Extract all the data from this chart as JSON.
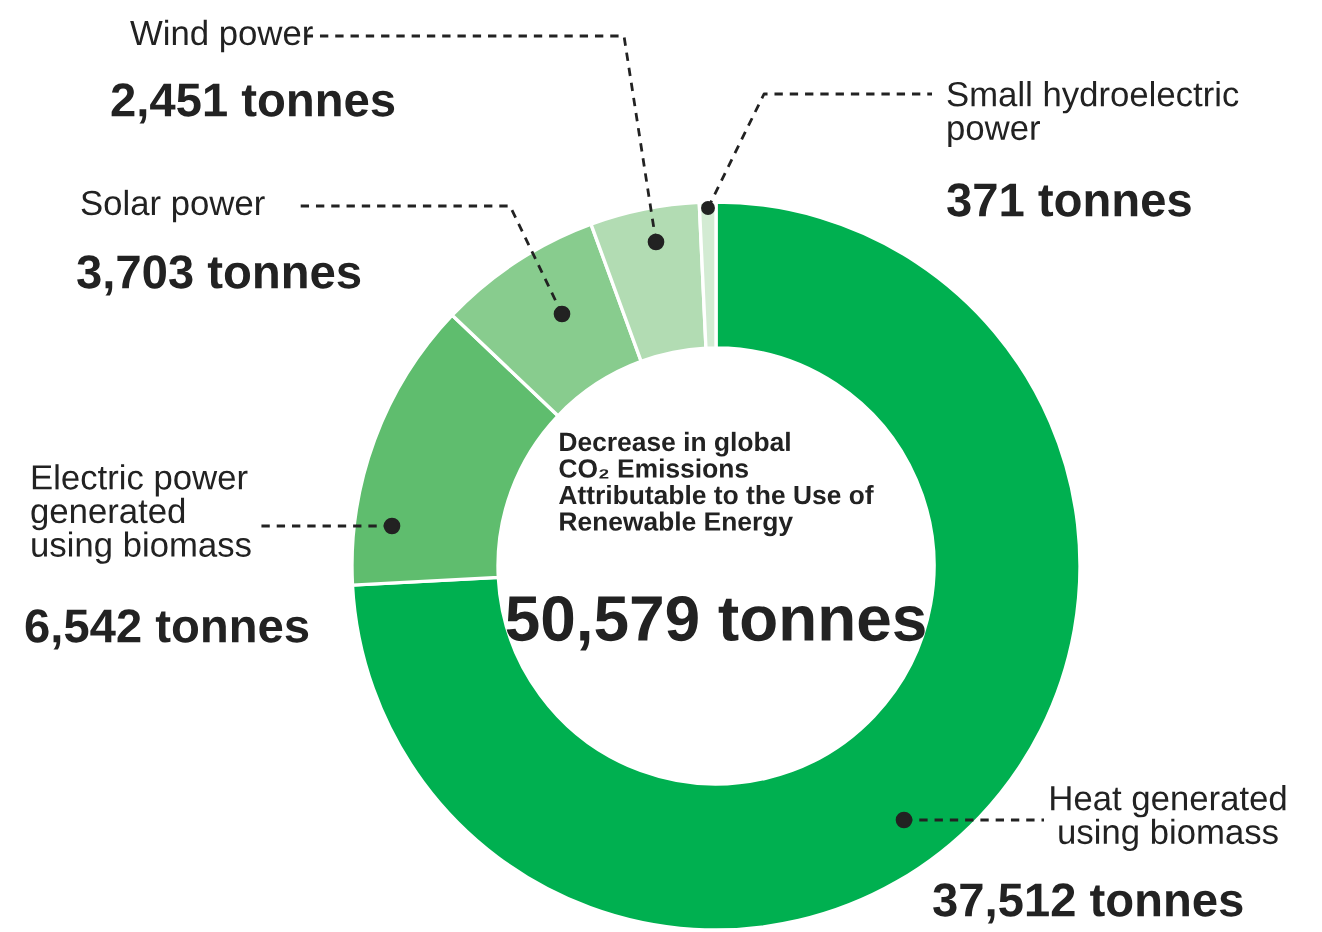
{
  "chart_data": {
    "type": "donut",
    "categories": [
      "Heat generated\nusing biomass",
      "Electric power\ngenerated\nusing biomass",
      "Solar power",
      "Wind power",
      "Small hydroelectric\npower"
    ],
    "values": [
      37512,
      6542,
      3703,
      2451,
      371
    ],
    "colors": [
      "#00b050",
      "#5fbd6e",
      "#88cc8e",
      "#b2dcb3",
      "#d3ebd3"
    ],
    "value_labels": [
      "37,512 tonnes",
      "6,542 tonnes",
      "3,703 tonnes",
      "2,451 tonnes",
      "371 tonnes"
    ],
    "annotations": [
      "Decrease in global\nCO₂ Emissions\nAttributable to the Use of\nRenewable Energy",
      "50,579 tonnes"
    ],
    "legend": false
  }
}
